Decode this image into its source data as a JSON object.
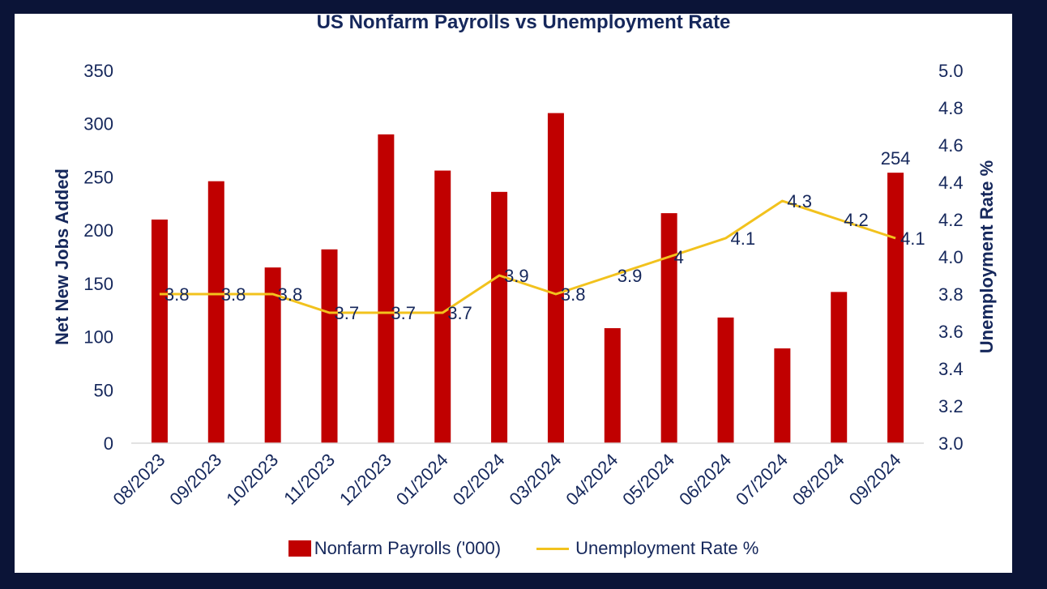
{
  "chart_data": {
    "type": "bar",
    "title": "US Nonfarm Payrolls vs Unemployment Rate",
    "categories": [
      "08/2023",
      "09/2023",
      "10/2023",
      "11/2023",
      "12/2023",
      "01/2024",
      "02/2024",
      "03/2024",
      "04/2024",
      "05/2024",
      "06/2024",
      "07/2024",
      "08/2024",
      "09/2024"
    ],
    "series": [
      {
        "name": "Nonfarm Payrolls ('000)",
        "type": "bar",
        "axis": "left",
        "color": "#c00000",
        "values": [
          210,
          246,
          165,
          182,
          290,
          256,
          236,
          310,
          108,
          216,
          118,
          89,
          142,
          254
        ],
        "data_labels": [
          null,
          null,
          null,
          null,
          null,
          null,
          null,
          null,
          null,
          null,
          null,
          null,
          null,
          "254"
        ]
      },
      {
        "name": "Unemployment Rate %",
        "type": "line",
        "axis": "right",
        "color": "#f2c21d",
        "values": [
          3.8,
          3.8,
          3.8,
          3.7,
          3.7,
          3.7,
          3.9,
          3.8,
          3.9,
          4.0,
          4.1,
          4.3,
          4.2,
          4.1
        ],
        "data_labels": [
          "3.8",
          "3.8",
          "3.8",
          "3.7",
          "3.7",
          "3.7",
          "3.9",
          "3.8",
          "3.9",
          "4",
          "4.1",
          "4.3",
          "4.2",
          "4.1"
        ]
      }
    ],
    "ylabel": "Net New Jobs Added",
    "ylim": [
      0,
      350
    ],
    "yticks": [
      "0",
      "50",
      "100",
      "150",
      "200",
      "250",
      "300",
      "350"
    ],
    "y2label": "Unemployment Rate %",
    "y2lim": [
      3.0,
      5.0
    ],
    "y2ticks": [
      "3.0",
      "3.2",
      "3.4",
      "3.6",
      "3.8",
      "4.0",
      "4.2",
      "4.4",
      "4.6",
      "4.8",
      "5.0"
    ],
    "grid": false,
    "legend": "bottom"
  },
  "legend": {
    "bar_label": "Nonfarm Payrolls ('000)",
    "line_label": "Unemployment Rate %"
  }
}
